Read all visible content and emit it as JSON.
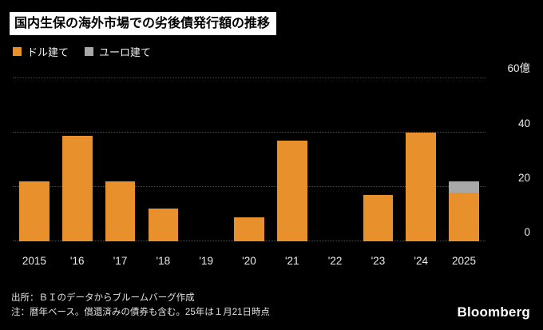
{
  "header": {
    "title": "国内生保の海外市場での劣後債発行額の推移"
  },
  "legend": {
    "items": [
      {
        "label": "ドル建て",
        "color": "#E8912C"
      },
      {
        "label": "ユーロ建て",
        "color": "#A8A8A8"
      }
    ]
  },
  "chart_data": {
    "type": "bar",
    "stacked": true,
    "title": "国内生保の海外市場での劣後債発行額の推移",
    "categories": [
      "2015",
      "'16",
      "'17",
      "'18",
      "'19",
      "'20",
      "'21",
      "'22",
      "'23",
      "'24",
      "2025"
    ],
    "series": [
      {
        "name": "ドル建て",
        "color": "#E8912C",
        "values": [
          22,
          39,
          22,
          12,
          0,
          9,
          37,
          0,
          17,
          40,
          18
        ]
      },
      {
        "name": "ユーロ建て",
        "color": "#A8A8A8",
        "values": [
          0,
          0,
          0,
          0,
          0,
          0,
          0,
          0,
          0,
          0,
          4
        ]
      }
    ],
    "xlabel": "",
    "ylabel": "",
    "ylim": [
      0,
      60
    ],
    "yticks": [
      {
        "value": 0,
        "label": "0"
      },
      {
        "value": 20,
        "label": "20"
      },
      {
        "value": 40,
        "label": "40"
      },
      {
        "value": 60,
        "label": "60億"
      }
    ],
    "grid": "dotted-horizontal",
    "legend_position": "top-left"
  },
  "footer": {
    "source": "出所：ＢＩのデータからブルームバーグ作成",
    "note": "注：暦年ベース。償還済みの債券も含む。25年は１月21日時点",
    "logo": "Bloomberg"
  }
}
